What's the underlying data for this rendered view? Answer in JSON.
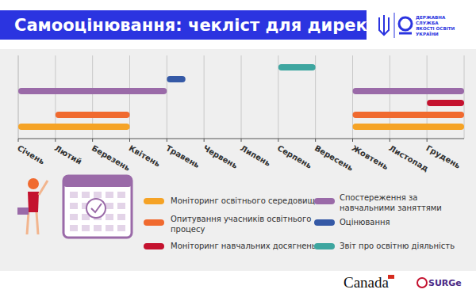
{
  "chart_data": {
    "type": "gantt",
    "title": "Самооцінювання: чекліст для директора",
    "logo_text": [
      "ДЕРЖАВНА",
      "СЛУЖБА",
      "ЯКОСТІ ОСВІТИ",
      "УКРАЇНИ"
    ],
    "footer": [
      "Canada",
      "SURGe"
    ],
    "xlim": [
      0,
      12
    ],
    "xticks": [
      {
        "value": 0,
        "label": "Січень"
      },
      {
        "value": 1,
        "label": "Лютий"
      },
      {
        "value": 2,
        "label": "Березень"
      },
      {
        "value": 3,
        "label": "Квітень"
      },
      {
        "value": 4,
        "label": "Травень"
      },
      {
        "value": 5,
        "label": "Червень"
      },
      {
        "value": 6,
        "label": "Липень"
      },
      {
        "value": 7,
        "label": "Серпень"
      },
      {
        "value": 8,
        "label": "Вересень"
      },
      {
        "value": 9,
        "label": "Жовтень"
      },
      {
        "value": 10,
        "label": "Листопад"
      },
      {
        "value": 11,
        "label": "Грудень"
      }
    ],
    "grid": true,
    "series": [
      {
        "name": "Моніторинг освітнього середовища",
        "color": "#f5a326",
        "segments": [
          [
            0,
            3
          ],
          [
            9,
            12
          ]
        ]
      },
      {
        "name": "Опитування учасників освітнього процесу",
        "color": "#f06a2f",
        "segments": [
          [
            1,
            3
          ],
          [
            9,
            12
          ]
        ]
      },
      {
        "name": "Моніторинг навчальних досягнень",
        "color": "#c4122f",
        "segments": [
          [
            11,
            12
          ]
        ]
      },
      {
        "name": "Спостереження за навчальними заняттями",
        "color": "#9a6aa8",
        "segments": [
          [
            0,
            4
          ],
          [
            9,
            12
          ]
        ]
      },
      {
        "name": "Оцінювання",
        "color": "#3559a6",
        "segments": [
          [
            4,
            4.5
          ]
        ]
      },
      {
        "name": "Звіт про освітню діяльність",
        "color": "#3ea6a0",
        "segments": [
          [
            7,
            8
          ]
        ]
      }
    ]
  }
}
